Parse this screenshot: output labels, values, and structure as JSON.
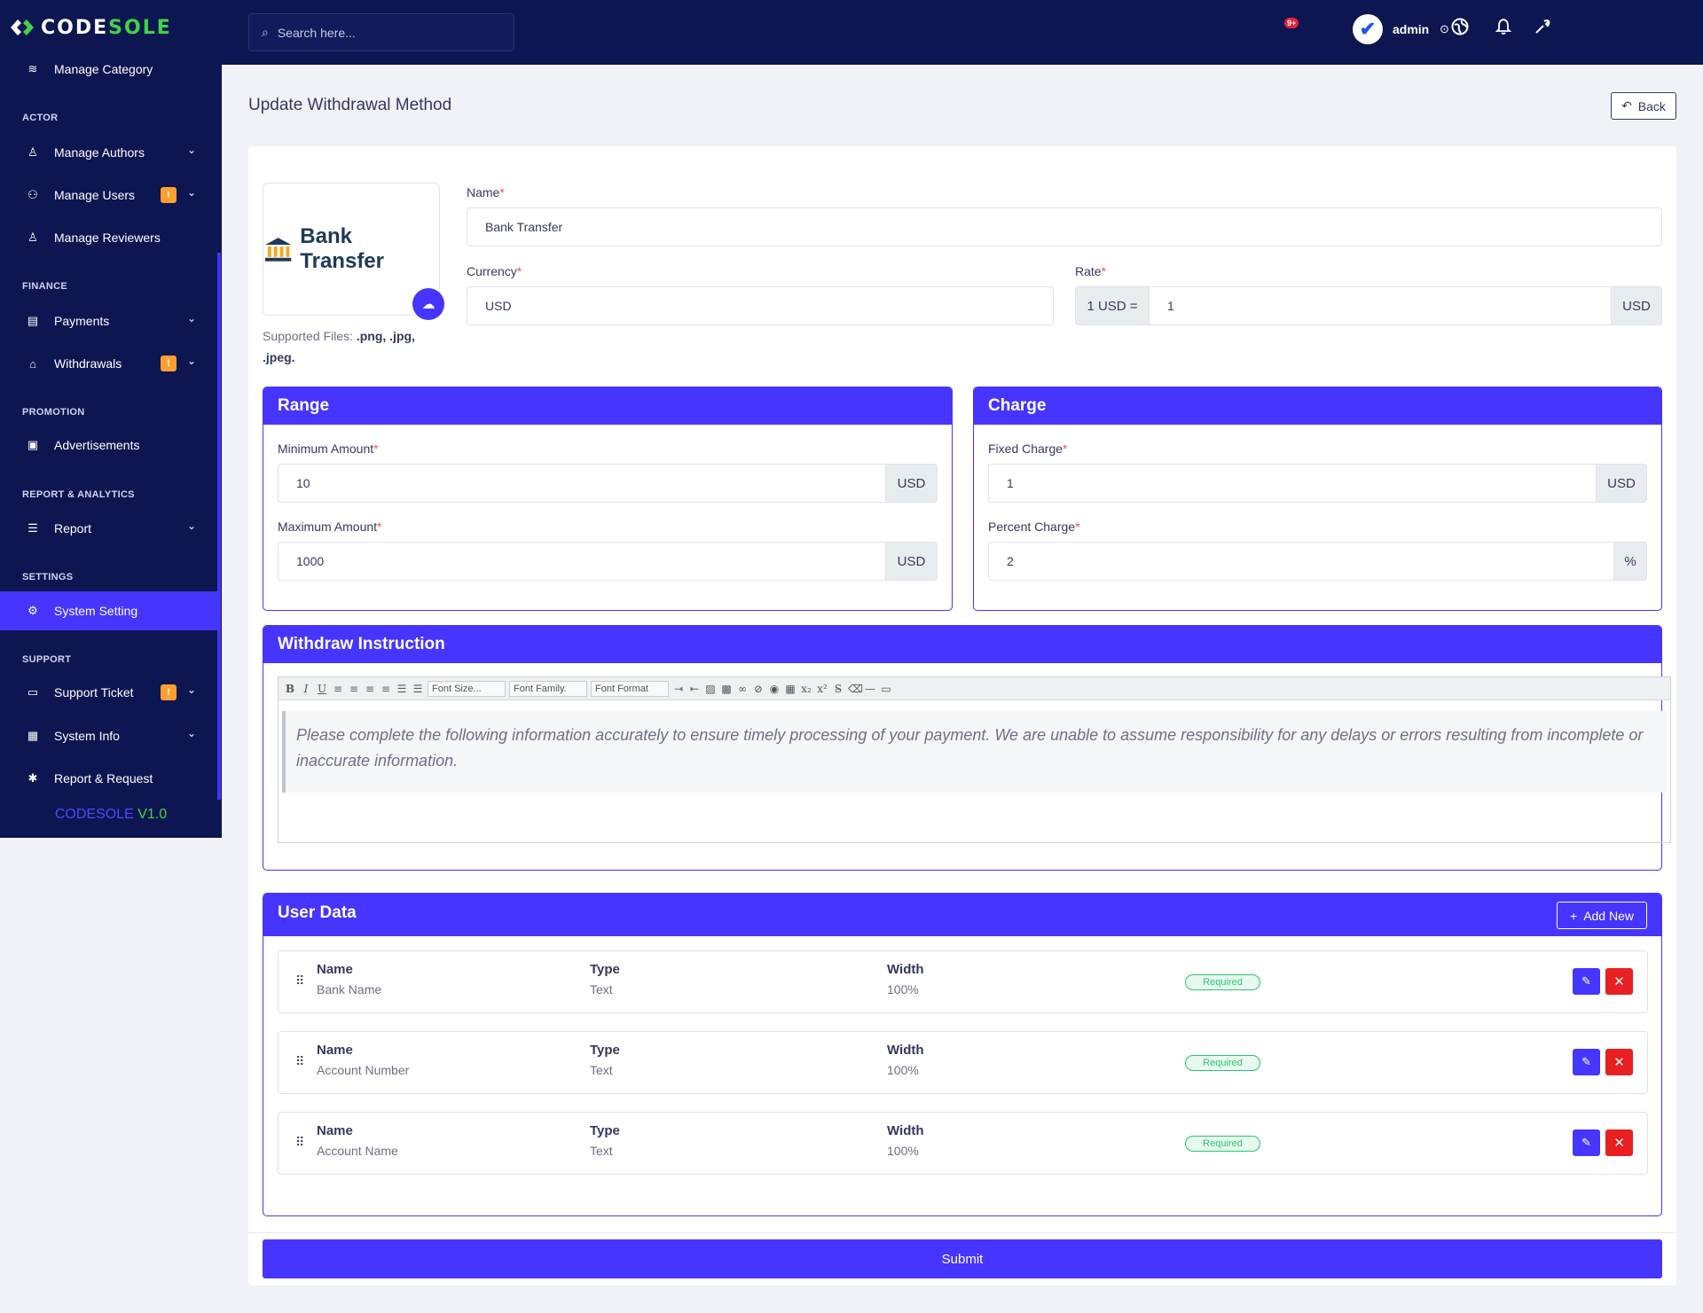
{
  "brand": {
    "code": "CODE",
    "sole": "SOLE"
  },
  "sidebar": {
    "items": [
      {
        "label": "Manage Category"
      },
      {
        "label": "Manage Authors"
      },
      {
        "label": "Manage Users",
        "badge": "!"
      },
      {
        "label": "Manage Reviewers"
      },
      {
        "label": "Payments"
      },
      {
        "label": "Withdrawals",
        "badge": "!"
      },
      {
        "label": "Advertisements"
      },
      {
        "label": "Report"
      },
      {
        "label": "System Setting"
      },
      {
        "label": "Support Ticket",
        "badge": "!"
      },
      {
        "label": "System Info"
      },
      {
        "label": "Report & Request"
      }
    ],
    "sections": {
      "actor": "ACTOR",
      "finance": "FINANCE",
      "promotion": "PROMOTION",
      "report": "REPORT & ANALYTICS",
      "settings": "SETTINGS",
      "support": "SUPPORT"
    },
    "version": {
      "name": "CODESOLE",
      "ver": "V1.0"
    }
  },
  "topbar": {
    "search_placeholder": "Search here...",
    "notif_count": "9+",
    "user": "admin"
  },
  "page": {
    "title": "Update Withdrawal Method",
    "back": "Back"
  },
  "logo": {
    "text": "Bank Transfer",
    "supported_label": "Supported Files:",
    "supported_types": ".png, .jpg, .jpeg."
  },
  "form": {
    "name_label": "Name",
    "name_value": "Bank Transfer",
    "currency_label": "Currency",
    "currency_value": "USD",
    "rate_label": "Rate",
    "rate_prefix": "1 USD =",
    "rate_value": "1",
    "rate_suffix": "USD",
    "required_mark": "*"
  },
  "range": {
    "title": "Range",
    "min_label": "Minimum Amount",
    "min_value": "10",
    "min_unit": "USD",
    "max_label": "Maximum Amount",
    "max_value": "1000",
    "max_unit": "USD"
  },
  "charge": {
    "title": "Charge",
    "fixed_label": "Fixed Charge",
    "fixed_value": "1",
    "fixed_unit": "USD",
    "percent_label": "Percent Charge",
    "percent_value": "2",
    "percent_unit": "%"
  },
  "instruction": {
    "title": "Withdraw Instruction",
    "toolbar": {
      "font_size": "Font Size...",
      "font_family": "Font Family.",
      "font_format": "Font Format"
    },
    "text": "Please complete the following information accurately to ensure timely processing of your payment. We are unable to assume responsibility for any delays or errors resulting from incomplete or inaccurate information."
  },
  "user_data": {
    "title": "User Data",
    "add_new": "Add New",
    "headers": {
      "name": "Name",
      "type": "Type",
      "width": "Width"
    },
    "rows": [
      {
        "name": "Bank Name",
        "type": "Text",
        "width": "100%",
        "status": "Required"
      },
      {
        "name": "Account Number",
        "type": "Text",
        "width": "100%",
        "status": "Required"
      },
      {
        "name": "Account Name",
        "type": "Text",
        "width": "100%",
        "status": "Required"
      }
    ]
  },
  "submit": "Submit",
  "colors": {
    "primary": "#4634ff",
    "sidebar": "#0d1650",
    "danger": "#ea1f1f",
    "success": "#28c76f",
    "warning": "#ff9f2f"
  }
}
